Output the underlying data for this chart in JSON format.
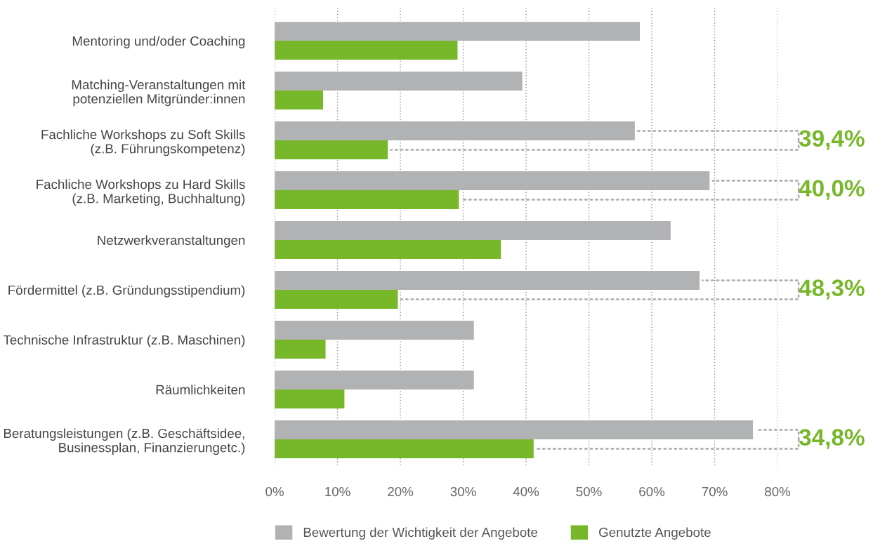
{
  "chart_data": {
    "type": "bar",
    "orientation": "horizontal",
    "categories": [
      "Mentoring und/oder Coaching",
      "Matching-Veranstaltungen mit\npotenziellen Mitgründer:innen",
      "Fachliche Workshops zu Soft Skills\n(z.B. Führungskompetenz)",
      "Fachliche Workshops zu Hard Skills\n(z.B. Marketing, Buchhaltung)",
      "Netzwerkveranstaltungen",
      "Fördermittel (z.B. Gründungsstipendium)",
      "Technische Infrastruktur (z.B. Maschinen)",
      "Räumlichkeiten",
      "Beratungsleistungen (z.B. Geschäftsidee,\nBusinessplan, Finanzierungetc.)"
    ],
    "series": [
      {
        "name": "Bewertung der Wichtigkeit der Angebote",
        "color": "#b1b2b4",
        "values": [
          58.1,
          39.4,
          57.3,
          69.2,
          63.0,
          67.6,
          31.7,
          31.7,
          76.1
        ]
      },
      {
        "name": "Genutzte Angebote",
        "color": "#77b72a",
        "values": [
          29.1,
          7.7,
          18.0,
          29.3,
          36.0,
          19.6,
          8.1,
          11.1,
          41.2
        ]
      }
    ],
    "xlim": [
      0,
      80
    ],
    "xticks": [
      {
        "value": 0,
        "label": "0%"
      },
      {
        "value": 10,
        "label": "10%"
      },
      {
        "value": 20,
        "label": "20%"
      },
      {
        "value": 30,
        "label": "30%"
      },
      {
        "value": 40,
        "label": "40%"
      },
      {
        "value": 50,
        "label": "50%"
      },
      {
        "value": 60,
        "label": "60%"
      },
      {
        "value": 70,
        "label": "70%"
      },
      {
        "value": 80,
        "label": "80%"
      }
    ],
    "grid": "x",
    "legend": "bottom",
    "annotations": [
      "39,4%",
      "40,0%",
      "48,3%",
      "34,8%"
    ]
  }
}
